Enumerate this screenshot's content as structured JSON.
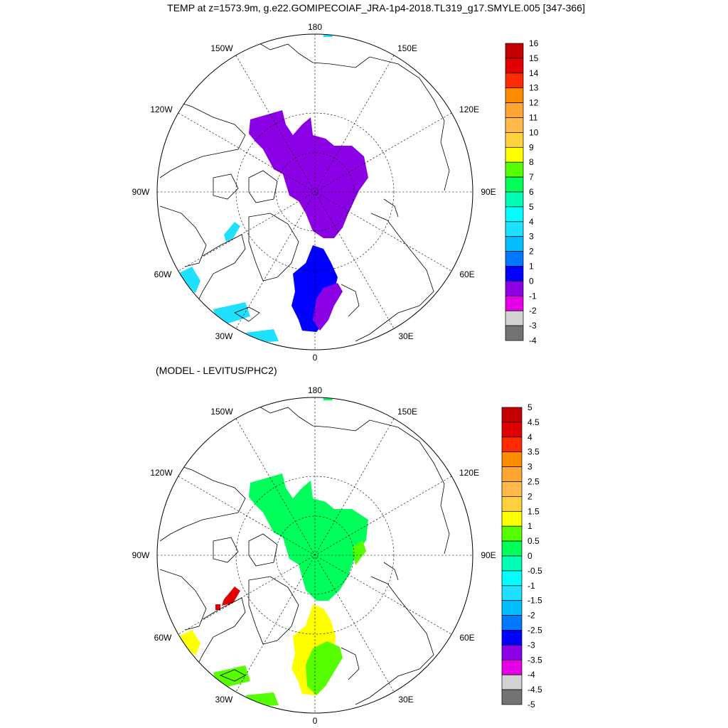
{
  "title": "TEMP at z=1573.9m, g.e22.GOMIPECOIAF_JRA-1p4-2018.TL319_g17.SMYLE.005 [347-366]",
  "maps": [
    {
      "id": "top",
      "subtitle": "",
      "lon_labels": {
        "l180": "180",
        "l150W": "150W",
        "l150E": "150E",
        "l120W": "120W",
        "l120E": "120E",
        "l90W": "90W",
        "l90E": "90E",
        "l60W": "60W",
        "l60E": "60E",
        "l30W": "30W",
        "l30E": "30E",
        "l0": "0"
      },
      "colorbar": {
        "labels": [
          "16",
          "15",
          "14",
          "13",
          "12",
          "11",
          "10",
          "9",
          "8",
          "7",
          "6",
          "5",
          "4",
          "3",
          "2",
          "1",
          "0",
          "-1",
          "-2",
          "-3",
          "-4"
        ],
        "colors": [
          "#c40000",
          "#e00000",
          "#ff2a00",
          "#ff8c00",
          "#ffa531",
          "#ffb84a",
          "#ffd23d",
          "#ffff00",
          "#55ff00",
          "#00ff5a",
          "#00ffb4",
          "#00ffff",
          "#1ee0ff",
          "#00beff",
          "#0078ff",
          "#0000ff",
          "#8c00e6",
          "#e600e6",
          "#d2d2d2",
          "#737373"
        ]
      }
    },
    {
      "id": "bottom",
      "subtitle": "(MODEL - LEVITUS/PHC2)",
      "lon_labels": {
        "l180": "180",
        "l150W": "150W",
        "l150E": "150E",
        "l120W": "120W",
        "l120E": "120E",
        "l90W": "90W",
        "l90E": "90E",
        "l60W": "60W",
        "l60E": "60E",
        "l30W": "30W",
        "l30E": "30E",
        "l0": "0"
      },
      "colorbar": {
        "labels": [
          "5",
          "4.5",
          "4",
          "3.5",
          "3",
          "2.5",
          "2",
          "1.5",
          "1",
          "0.5",
          "0",
          "-0.5",
          "-1",
          "-1.5",
          "-2",
          "-2.5",
          "-3",
          "-3.5",
          "-4",
          "-4.5",
          "-5"
        ],
        "colors": [
          "#c40000",
          "#e00000",
          "#ff2a00",
          "#ff8c00",
          "#ffa531",
          "#ffb84a",
          "#ffd23d",
          "#ffff00",
          "#55ff00",
          "#00ff5a",
          "#00ffb4",
          "#00ffff",
          "#1ee0ff",
          "#00beff",
          "#0078ff",
          "#0000ff",
          "#8c00e6",
          "#e600e6",
          "#d2d2d2",
          "#737373"
        ]
      }
    }
  ],
  "field_colors": {
    "top_main": "#8c00e6",
    "top_nordic": "#0000ff",
    "top_cyan": "#1ee0ff",
    "bottom_main": "#00ff5a",
    "bottom_nordic": "#ffff00",
    "bottom_green": "#55ff00",
    "bottom_red": "#e00000"
  }
}
